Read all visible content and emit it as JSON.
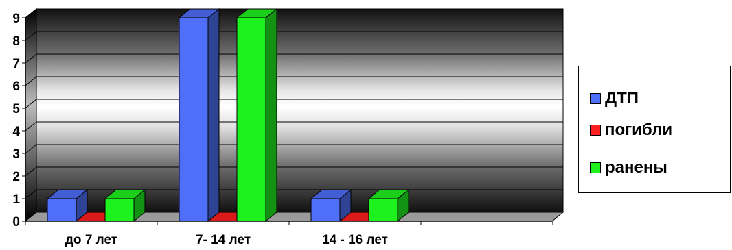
{
  "chart_data": {
    "type": "bar",
    "categories": [
      "до 7 лет",
      "7- 14 лет",
      "14 - 16 лет"
    ],
    "series": [
      {
        "name": "ДТП",
        "values": [
          1,
          9,
          1
        ],
        "color": "#4f6ff8"
      },
      {
        "name": "погибли",
        "values": [
          0,
          0,
          0
        ],
        "color": "#ff2020"
      },
      {
        "name": "ранены",
        "values": [
          1,
          9,
          1
        ],
        "color": "#1ef21e"
      }
    ],
    "y_ticks": [
      "0",
      "1",
      "2",
      "3",
      "4",
      "5",
      "6",
      "7",
      "8",
      "9"
    ],
    "ylim": [
      0,
      9
    ],
    "grid": true,
    "legend_position": "right",
    "style": "3d-bar"
  }
}
